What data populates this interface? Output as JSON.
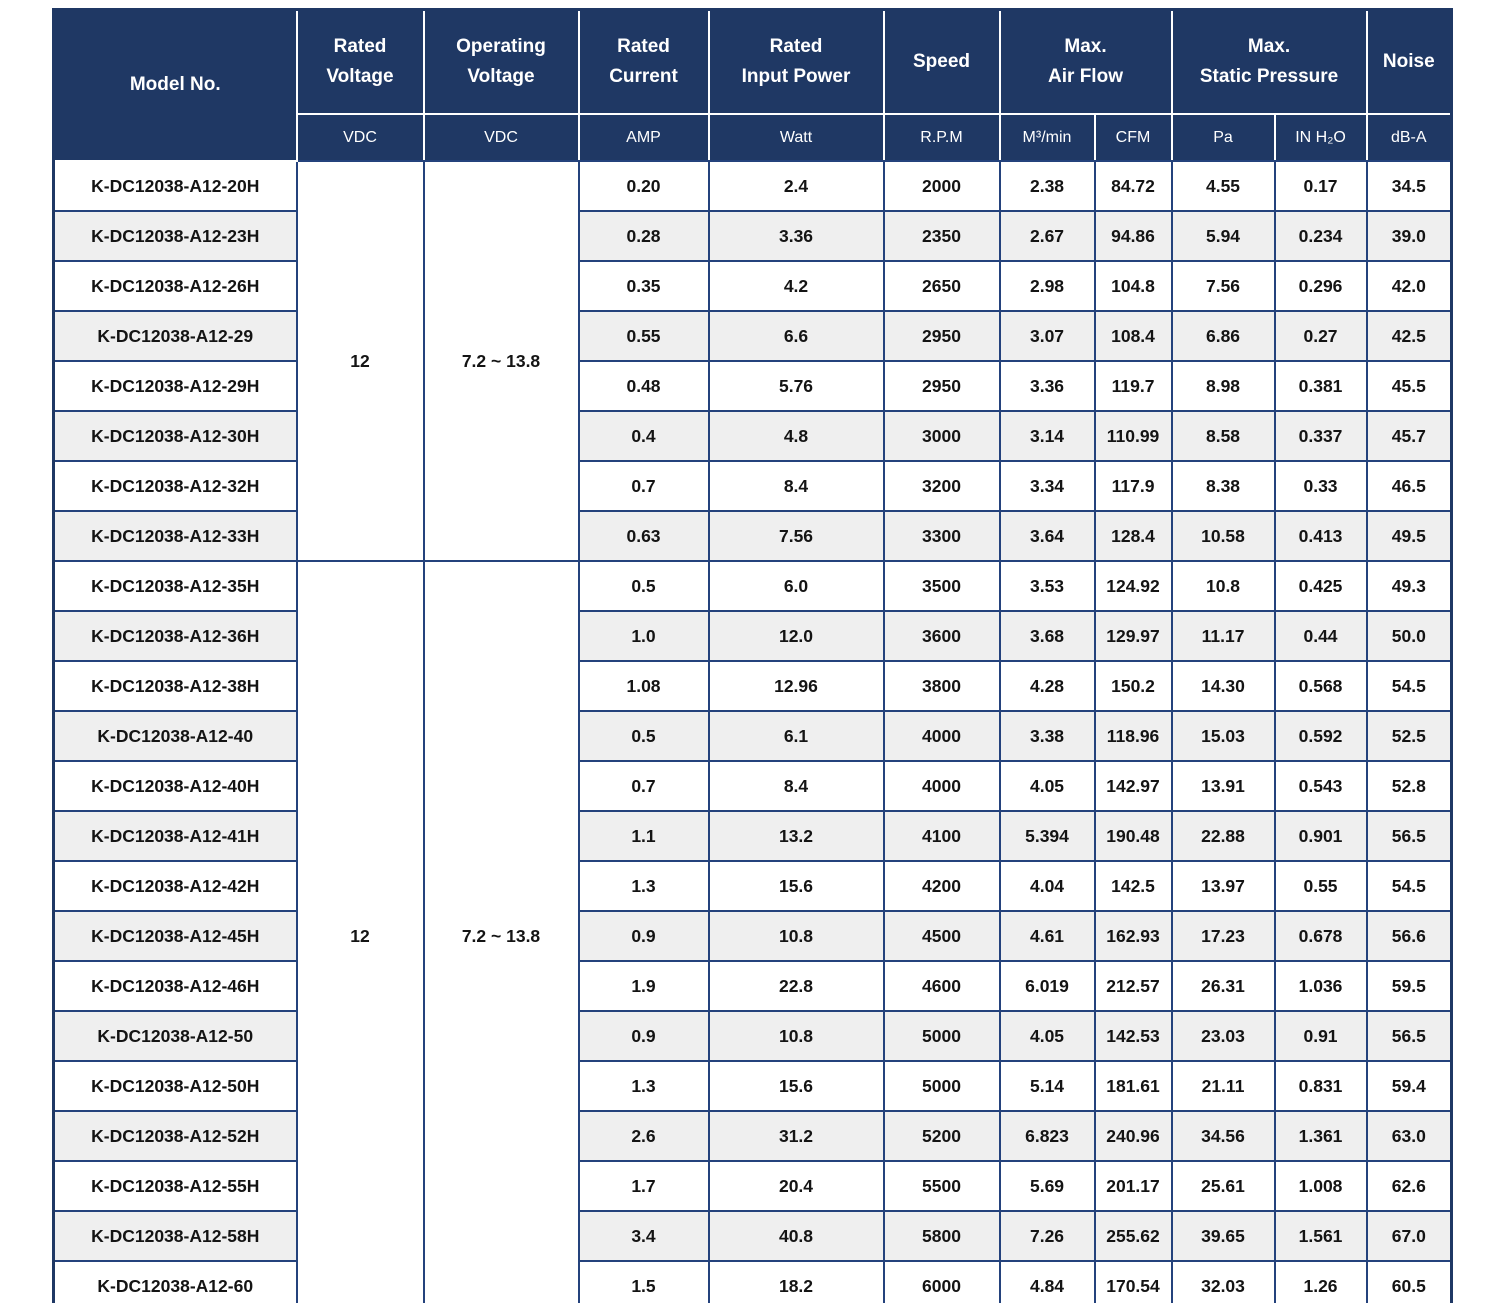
{
  "colors": {
    "header_bg": "#1f3864",
    "header_gridline": "#ffffff",
    "body_gridline": "#24427c",
    "row_alt_bg": "#efefef",
    "row_bg": "#ffffff",
    "data_text": "#141414"
  },
  "header": {
    "model": {
      "label": "Model No."
    },
    "rated_voltage": {
      "label": "Rated\nVoltage",
      "unit": "VDC"
    },
    "operating_voltage": {
      "label": "Operating\nVoltage",
      "unit": "VDC"
    },
    "rated_current": {
      "label": "Rated\nCurrent",
      "unit": "AMP"
    },
    "rated_input_power": {
      "label": "Rated\nInput Power",
      "unit": "Watt"
    },
    "speed": {
      "label": "Speed",
      "unit": "R.P.M"
    },
    "max_air_flow": {
      "label": "Max.\nAir Flow",
      "units": [
        "M³/min",
        "CFM"
      ]
    },
    "max_static_pressure": {
      "label": "Max.\nStatic Pressure",
      "units": [
        "Pa",
        "IN H₂O"
      ]
    },
    "noise": {
      "label": "Noise",
      "unit": "dB-A"
    }
  },
  "groups": [
    {
      "rated_voltage": "12",
      "operating_voltage": "7.2 ~ 13.8",
      "rows": [
        {
          "model": "K-DC12038-A12-20H",
          "current": "0.20",
          "power": "2.4",
          "speed": "2000",
          "m3min": "2.38",
          "cfm": "84.72",
          "pa": "4.55",
          "inh2o": "0.17",
          "noise": "34.5"
        },
        {
          "model": "K-DC12038-A12-23H",
          "current": "0.28",
          "power": "3.36",
          "speed": "2350",
          "m3min": "2.67",
          "cfm": "94.86",
          "pa": "5.94",
          "inh2o": "0.234",
          "noise": "39.0"
        },
        {
          "model": "K-DC12038-A12-26H",
          "current": "0.35",
          "power": "4.2",
          "speed": "2650",
          "m3min": "2.98",
          "cfm": "104.8",
          "pa": "7.56",
          "inh2o": "0.296",
          "noise": "42.0"
        },
        {
          "model": "K-DC12038-A12-29",
          "current": "0.55",
          "power": "6.6",
          "speed": "2950",
          "m3min": "3.07",
          "cfm": "108.4",
          "pa": "6.86",
          "inh2o": "0.27",
          "noise": "42.5"
        },
        {
          "model": "K-DC12038-A12-29H",
          "current": "0.48",
          "power": "5.76",
          "speed": "2950",
          "m3min": "3.36",
          "cfm": "119.7",
          "pa": "8.98",
          "inh2o": "0.381",
          "noise": "45.5"
        },
        {
          "model": "K-DC12038-A12-30H",
          "current": "0.4",
          "power": "4.8",
          "speed": "3000",
          "m3min": "3.14",
          "cfm": "110.99",
          "pa": "8.58",
          "inh2o": "0.337",
          "noise": "45.7"
        },
        {
          "model": "K-DC12038-A12-32H",
          "current": "0.7",
          "power": "8.4",
          "speed": "3200",
          "m3min": "3.34",
          "cfm": "117.9",
          "pa": "8.38",
          "inh2o": "0.33",
          "noise": "46.5"
        },
        {
          "model": "K-DC12038-A12-33H",
          "current": "0.63",
          "power": "7.56",
          "speed": "3300",
          "m3min": "3.64",
          "cfm": "128.4",
          "pa": "10.58",
          "inh2o": "0.413",
          "noise": "49.5"
        }
      ]
    },
    {
      "rated_voltage": "12",
      "operating_voltage": "7.2 ~ 13.8",
      "rows": [
        {
          "model": "K-DC12038-A12-35H",
          "current": "0.5",
          "power": "6.0",
          "speed": "3500",
          "m3min": "3.53",
          "cfm": "124.92",
          "pa": "10.8",
          "inh2o": "0.425",
          "noise": "49.3"
        },
        {
          "model": "K-DC12038-A12-36H",
          "current": "1.0",
          "power": "12.0",
          "speed": "3600",
          "m3min": "3.68",
          "cfm": "129.97",
          "pa": "11.17",
          "inh2o": "0.44",
          "noise": "50.0"
        },
        {
          "model": "K-DC12038-A12-38H",
          "current": "1.08",
          "power": "12.96",
          "speed": "3800",
          "m3min": "4.28",
          "cfm": "150.2",
          "pa": "14.30",
          "inh2o": "0.568",
          "noise": "54.5"
        },
        {
          "model": "K-DC12038-A12-40",
          "current": "0.5",
          "power": "6.1",
          "speed": "4000",
          "m3min": "3.38",
          "cfm": "118.96",
          "pa": "15.03",
          "inh2o": "0.592",
          "noise": "52.5"
        },
        {
          "model": "K-DC12038-A12-40H",
          "current": "0.7",
          "power": "8.4",
          "speed": "4000",
          "m3min": "4.05",
          "cfm": "142.97",
          "pa": "13.91",
          "inh2o": "0.543",
          "noise": "52.8"
        },
        {
          "model": "K-DC12038-A12-41H",
          "current": "1.1",
          "power": "13.2",
          "speed": "4100",
          "m3min": "5.394",
          "cfm": "190.48",
          "pa": "22.88",
          "inh2o": "0.901",
          "noise": "56.5"
        },
        {
          "model": "K-DC12038-A12-42H",
          "current": "1.3",
          "power": "15.6",
          "speed": "4200",
          "m3min": "4.04",
          "cfm": "142.5",
          "pa": "13.97",
          "inh2o": "0.55",
          "noise": "54.5"
        },
        {
          "model": "K-DC12038-A12-45H",
          "current": "0.9",
          "power": "10.8",
          "speed": "4500",
          "m3min": "4.61",
          "cfm": "162.93",
          "pa": "17.23",
          "inh2o": "0.678",
          "noise": "56.6"
        },
        {
          "model": "K-DC12038-A12-46H",
          "current": "1.9",
          "power": "22.8",
          "speed": "4600",
          "m3min": "6.019",
          "cfm": "212.57",
          "pa": "26.31",
          "inh2o": "1.036",
          "noise": "59.5"
        },
        {
          "model": "K-DC12038-A12-50",
          "current": "0.9",
          "power": "10.8",
          "speed": "5000",
          "m3min": "4.05",
          "cfm": "142.53",
          "pa": "23.03",
          "inh2o": "0.91",
          "noise": "56.5"
        },
        {
          "model": "K-DC12038-A12-50H",
          "current": "1.3",
          "power": "15.6",
          "speed": "5000",
          "m3min": "5.14",
          "cfm": "181.61",
          "pa": "21.11",
          "inh2o": "0.831",
          "noise": "59.4"
        },
        {
          "model": "K-DC12038-A12-52H",
          "current": "2.6",
          "power": "31.2",
          "speed": "5200",
          "m3min": "6.823",
          "cfm": "240.96",
          "pa": "34.56",
          "inh2o": "1.361",
          "noise": "63.0"
        },
        {
          "model": "K-DC12038-A12-55H",
          "current": "1.7",
          "power": "20.4",
          "speed": "5500",
          "m3min": "5.69",
          "cfm": "201.17",
          "pa": "25.61",
          "inh2o": "1.008",
          "noise": "62.6"
        },
        {
          "model": "K-DC12038-A12-58H",
          "current": "3.4",
          "power": "40.8",
          "speed": "5800",
          "m3min": "7.26",
          "cfm": "255.62",
          "pa": "39.65",
          "inh2o": "1.561",
          "noise": "67.0"
        },
        {
          "model": "K-DC12038-A12-60",
          "current": "1.5",
          "power": "18.2",
          "speed": "6000",
          "m3min": "4.84",
          "cfm": "170.54",
          "pa": "32.03",
          "inh2o": "1.26",
          "noise": "60.5"
        }
      ]
    }
  ]
}
